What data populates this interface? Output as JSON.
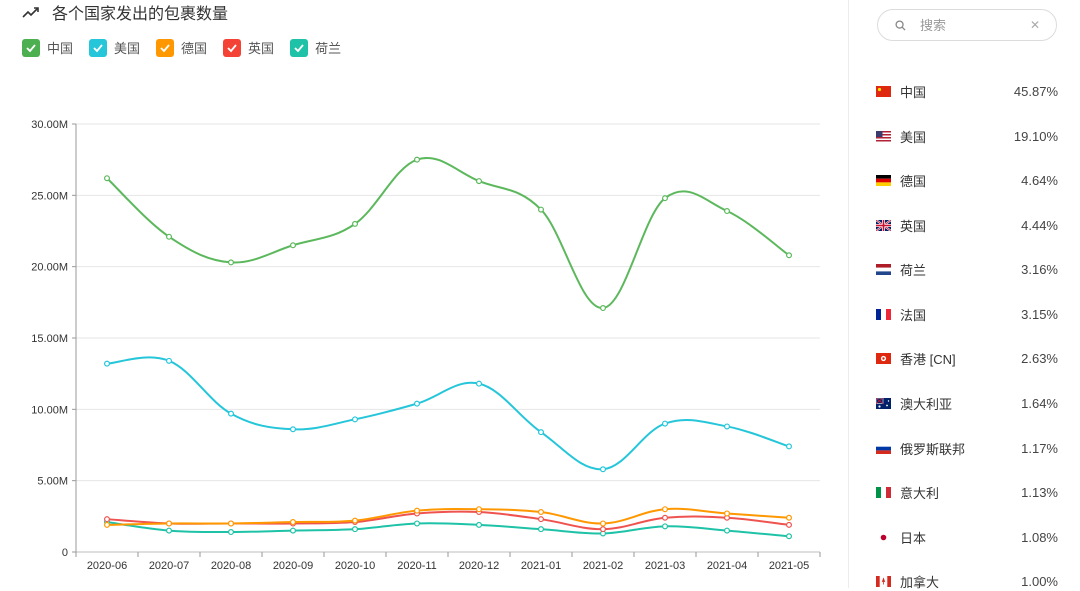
{
  "header": {
    "title": "各个国家发出的包裹数量",
    "icon": "trending-up-icon"
  },
  "legend": [
    {
      "name": "中国",
      "color": "#4caf50"
    },
    {
      "name": "美国",
      "color": "#26c6da"
    },
    {
      "name": "德国",
      "color": "#ff9800"
    },
    {
      "name": "英国",
      "color": "#f44336"
    },
    {
      "name": "荷兰",
      "color": "#1ec2a7"
    }
  ],
  "chart_data": {
    "type": "line",
    "title": "各个国家发出的包裹数量",
    "categories": [
      "2020-06",
      "2020-07",
      "2020-08",
      "2020-09",
      "2020-10",
      "2020-11",
      "2020-12",
      "2021-01",
      "2021-02",
      "2021-03",
      "2021-04",
      "2021-05"
    ],
    "ylim": [
      0,
      30000000
    ],
    "yticks": [
      0,
      5000000,
      10000000,
      15000000,
      20000000,
      25000000,
      30000000
    ],
    "ytick_labels": [
      "0",
      "5.00M",
      "10.00M",
      "15.00M",
      "20.00M",
      "25.00M",
      "30.00M"
    ],
    "grid": true,
    "series": [
      {
        "name": "中国",
        "color": "#5cb85c",
        "values": [
          26.2,
          22.1,
          20.3,
          21.5,
          23.0,
          27.5,
          26.0,
          24.0,
          17.1,
          24.8,
          23.9,
          20.8
        ]
      },
      {
        "name": "美国",
        "color": "#26c6da",
        "values": [
          13.2,
          13.4,
          9.7,
          8.6,
          9.3,
          10.4,
          11.8,
          8.4,
          5.8,
          9.0,
          8.8,
          7.4
        ]
      },
      {
        "name": "德国",
        "color": "#ff9800",
        "values": [
          1.9,
          2.0,
          2.0,
          2.1,
          2.2,
          2.9,
          3.0,
          2.8,
          2.0,
          3.0,
          2.7,
          2.4
        ]
      },
      {
        "name": "英国",
        "color": "#ef5350",
        "values": [
          2.3,
          2.0,
          2.0,
          2.0,
          2.1,
          2.7,
          2.8,
          2.3,
          1.6,
          2.4,
          2.4,
          1.9
        ]
      },
      {
        "name": "荷兰",
        "color": "#1ec2a7",
        "values": [
          2.1,
          1.5,
          1.4,
          1.5,
          1.6,
          2.0,
          1.9,
          1.6,
          1.3,
          1.8,
          1.5,
          1.1
        ]
      }
    ],
    "value_unit": "M"
  },
  "search": {
    "placeholder": "搜索"
  },
  "countries": [
    {
      "name": "中国",
      "pct": "45.87%",
      "flag": "cn"
    },
    {
      "name": "美国",
      "pct": "19.10%",
      "flag": "us"
    },
    {
      "name": "德国",
      "pct": "4.64%",
      "flag": "de"
    },
    {
      "name": "英国",
      "pct": "4.44%",
      "flag": "gb"
    },
    {
      "name": "荷兰",
      "pct": "3.16%",
      "flag": "nl"
    },
    {
      "name": "法国",
      "pct": "3.15%",
      "flag": "fr"
    },
    {
      "name": "香港 [CN]",
      "pct": "2.63%",
      "flag": "hk"
    },
    {
      "name": "澳大利亚",
      "pct": "1.64%",
      "flag": "au"
    },
    {
      "name": "俄罗斯联邦",
      "pct": "1.17%",
      "flag": "ru"
    },
    {
      "name": "意大利",
      "pct": "1.13%",
      "flag": "it"
    },
    {
      "name": "日本",
      "pct": "1.08%",
      "flag": "jp"
    },
    {
      "name": "加拿大",
      "pct": "1.00%",
      "flag": "ca"
    }
  ]
}
